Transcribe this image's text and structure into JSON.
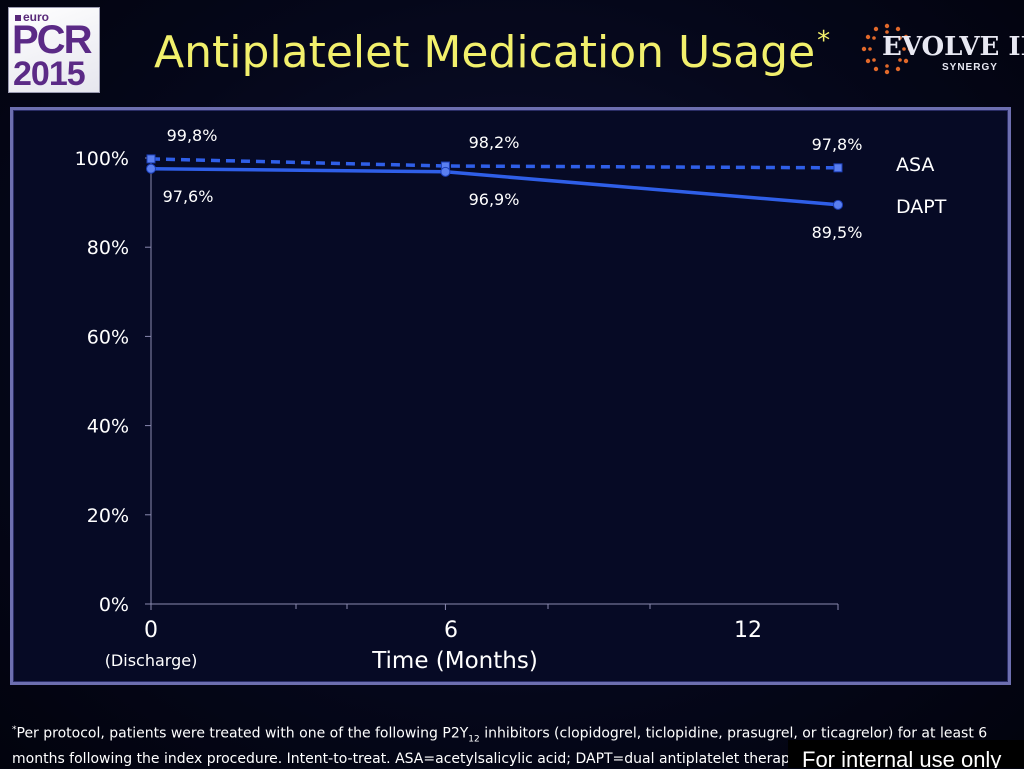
{
  "header": {
    "title": "Antiplatelet Medication Usage",
    "title_mark": "*",
    "logo_left": {
      "prefix": "euro",
      "name": "PCR",
      "year": "2015"
    },
    "logo_right": {
      "name": "EVOLVE II",
      "sub": "SYNERGY"
    }
  },
  "chart_data": {
    "type": "line",
    "x": [
      0,
      6,
      12
    ],
    "x_plot_positions": [
      0,
      6,
      14
    ],
    "x_tick_labels": [
      "0",
      "6",
      "12"
    ],
    "x_sublabel": "(Discharge)",
    "xlabel": "Time (Months)",
    "ylabel": "",
    "ylim": [
      0,
      100
    ],
    "y_ticks": [
      0,
      20,
      40,
      60,
      80,
      100
    ],
    "y_tick_labels": [
      "0%",
      "20%",
      "40%",
      "60%",
      "80%",
      "100%"
    ],
    "grid": false,
    "legend_placement": "right",
    "series": [
      {
        "name": "ASA",
        "style": "dashed",
        "marker": "square",
        "color": "#2f5fe8",
        "values": [
          99.8,
          98.2,
          97.8
        ],
        "labels": [
          "99,8%",
          "98,2%",
          "97,8%"
        ]
      },
      {
        "name": "DAPT",
        "style": "solid",
        "marker": "circle",
        "color": "#2f5fe8",
        "values": [
          97.6,
          96.9,
          89.5
        ],
        "labels": [
          "97,6%",
          "96,9%",
          "89,5%"
        ]
      }
    ]
  },
  "footnote": {
    "mark": "*",
    "text_before": "Per protocol, patients were treated with one of the following P2Y",
    "subscript": "12",
    "text_after": " inhibitors (clopidogrel, ticlopidine, prasugrel, or ticagrelor) for at least 6 months following the index procedure. Intent-to-treat. ASA=acetylsalicylic acid; DAPT=dual antiplatelet therapy"
  },
  "internal_note": "For internal use only",
  "colors": {
    "title": "#f2f06c",
    "series": "#2f5fe8",
    "frame": "#6d6fb0"
  }
}
